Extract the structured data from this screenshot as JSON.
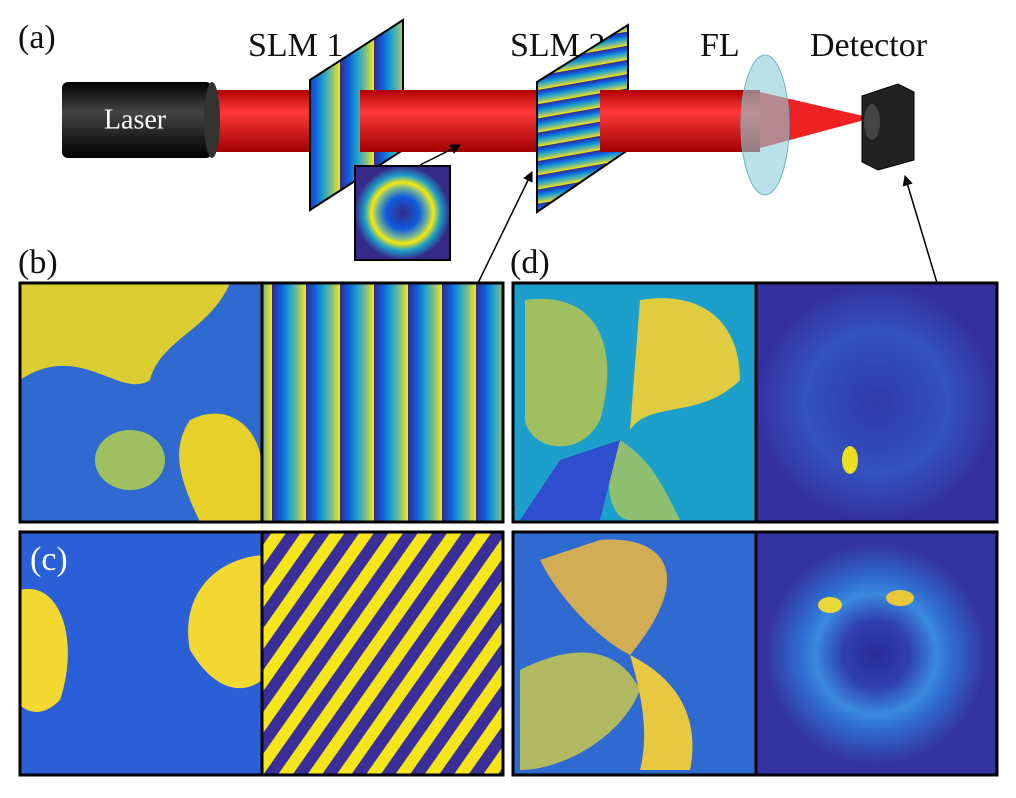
{
  "labels": {
    "a": "(a)",
    "b": "(b)",
    "c": "(c)",
    "d": "(d)"
  },
  "components": {
    "laser": "Laser",
    "slm1": "SLM 1",
    "slm2": "SLM 2",
    "fl": "FL",
    "detector": "Detector"
  }
}
